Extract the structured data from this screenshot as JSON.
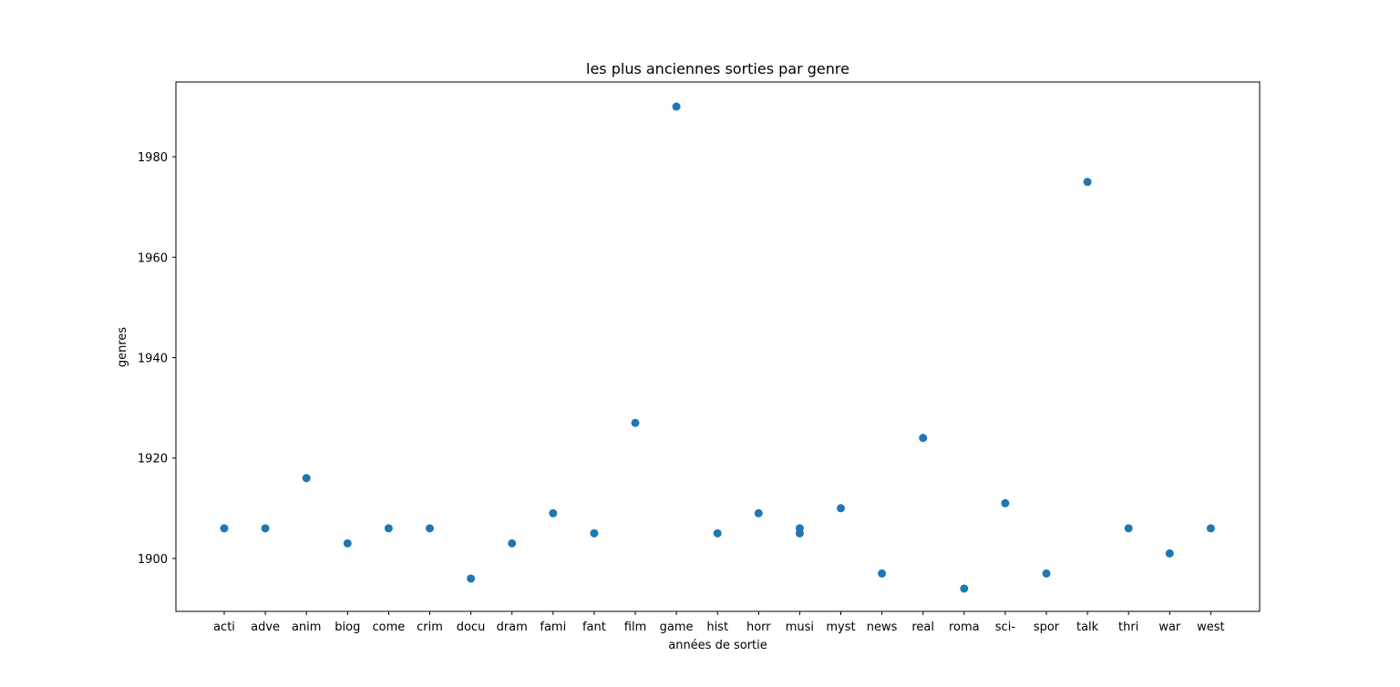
{
  "chart_data": {
    "type": "scatter",
    "title": "les plus anciennes sorties par genre",
    "xlabel": "années de sortie",
    "ylabel": "genres",
    "categories": [
      "acti",
      "adve",
      "anim",
      "biog",
      "come",
      "crim",
      "docu",
      "dram",
      "fami",
      "fant",
      "film",
      "game",
      "hist",
      "horr",
      "musi",
      "myst",
      "news",
      "real",
      "roma",
      "sci-",
      "spor",
      "talk",
      "thri",
      "war",
      "west"
    ],
    "points": [
      {
        "x": "acti",
        "y": 1906
      },
      {
        "x": "adve",
        "y": 1906
      },
      {
        "x": "anim",
        "y": 1916
      },
      {
        "x": "biog",
        "y": 1903
      },
      {
        "x": "come",
        "y": 1906
      },
      {
        "x": "crim",
        "y": 1906
      },
      {
        "x": "docu",
        "y": 1896
      },
      {
        "x": "dram",
        "y": 1903
      },
      {
        "x": "fami",
        "y": 1909
      },
      {
        "x": "fant",
        "y": 1905
      },
      {
        "x": "film",
        "y": 1927
      },
      {
        "x": "game",
        "y": 1990
      },
      {
        "x": "hist",
        "y": 1905
      },
      {
        "x": "horr",
        "y": 1909
      },
      {
        "x": "musi",
        "y": 1906
      },
      {
        "x": "musi",
        "y": 1905
      },
      {
        "x": "myst",
        "y": 1910
      },
      {
        "x": "news",
        "y": 1897
      },
      {
        "x": "real",
        "y": 1924
      },
      {
        "x": "roma",
        "y": 1894
      },
      {
        "x": "sci-",
        "y": 1911
      },
      {
        "x": "spor",
        "y": 1897
      },
      {
        "x": "talk",
        "y": 1975
      },
      {
        "x": "thri",
        "y": 1906
      },
      {
        "x": "war",
        "y": 1901
      },
      {
        "x": "west",
        "y": 1906
      }
    ],
    "yticks": [
      1900,
      1920,
      1940,
      1960,
      1980
    ],
    "ylim": [
      1889.2,
      1994.8
    ],
    "grid": false,
    "marker_color": "#1f77b4"
  }
}
